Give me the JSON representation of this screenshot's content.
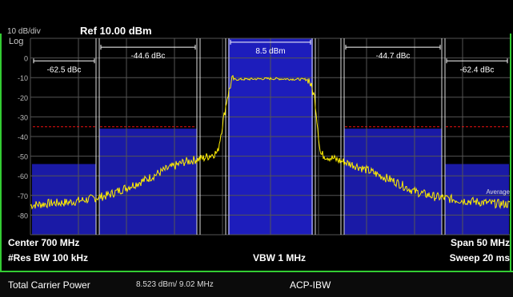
{
  "header": {
    "scale_per_div": "10 dB/div",
    "ref_level": "Ref 10.00 dBm",
    "scale_type": "Log"
  },
  "chart_data": {
    "type": "line",
    "title": "",
    "ylim": [
      -90,
      10
    ],
    "yticks": [
      0,
      -10,
      -20,
      -30,
      -40,
      -50,
      -60,
      -70,
      -80
    ],
    "ytick_labels": [
      "0",
      "-10",
      "-20",
      "-30",
      "-40",
      "-50",
      "-60",
      "-70",
      "-80"
    ],
    "xlim": [
      675,
      725
    ],
    "x_unit": "MHz",
    "grid": true,
    "limit_line_dbm": -35,
    "carrier": {
      "x_start": 695.5,
      "x_end": 704.5,
      "level_dbm": -10.5,
      "label": "8.5 dBm"
    },
    "adjacent_channels": [
      {
        "name": "lower-alt",
        "x_start": 675.0,
        "x_end": 682.0,
        "fill_top_dbm": -54,
        "label": "-62.5 dBc"
      },
      {
        "name": "lower-adj",
        "x_start": 682.0,
        "x_end": 692.5,
        "fill_top_dbm": -36,
        "label": "-44.6 dBc"
      },
      {
        "name": "upper-adj",
        "x_start": 707.5,
        "x_end": 718.0,
        "fill_top_dbm": -36,
        "label": "-44.7 dBc"
      },
      {
        "name": "upper-alt",
        "x_start": 718.0,
        "x_end": 725.0,
        "fill_top_dbm": -54,
        "label": "-62.4 dBc"
      }
    ],
    "trace": {
      "name": "Average",
      "points": [
        [
          675.0,
          -75
        ],
        [
          677.0,
          -74
        ],
        [
          679.0,
          -73.5
        ],
        [
          681.0,
          -72
        ],
        [
          683.0,
          -70
        ],
        [
          685.0,
          -66
        ],
        [
          687.0,
          -62
        ],
        [
          689.0,
          -57
        ],
        [
          691.0,
          -53
        ],
        [
          693.0,
          -51
        ],
        [
          694.5,
          -48
        ],
        [
          695.5,
          -20
        ],
        [
          696.0,
          -11
        ],
        [
          700.0,
          -10.5
        ],
        [
          704.0,
          -11
        ],
        [
          704.6,
          -20
        ],
        [
          705.2,
          -49
        ],
        [
          707.0,
          -52
        ],
        [
          709.0,
          -55
        ],
        [
          711.0,
          -59
        ],
        [
          713.0,
          -63
        ],
        [
          715.0,
          -68
        ],
        [
          717.0,
          -70.5
        ],
        [
          719.0,
          -72
        ],
        [
          721.0,
          -73
        ],
        [
          723.0,
          -74
        ],
        [
          725.0,
          -74.5
        ]
      ]
    }
  },
  "bottom_info": {
    "center": "Center  700 MHz",
    "res_bw": "#Res BW  100 kHz",
    "vbw": "VBW  1 MHz",
    "span": "Span 50 MHz",
    "sweep": "Sweep  20 ms"
  },
  "footer": {
    "label": "Total Carrier Power",
    "value": "8.523 dBm/ 9.02 MHz",
    "mode": "ACP-IBW"
  }
}
